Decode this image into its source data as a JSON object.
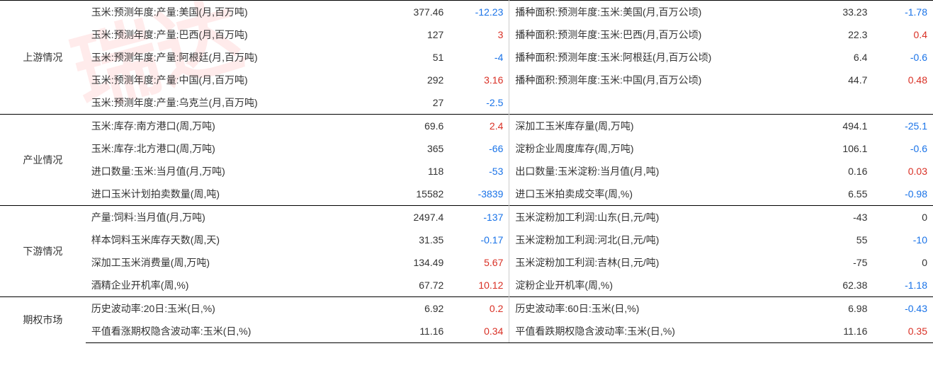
{
  "watermark_text": "瑞达",
  "colors": {
    "positive": "#d93025",
    "negative": "#1a73e8",
    "neutral": "#333333",
    "border": "#000000",
    "divider": "#cccccc",
    "background": "#ffffff"
  },
  "typography": {
    "font_family": "Microsoft YaHei, SimSun, Arial, sans-serif",
    "font_size": 14
  },
  "columns": {
    "category_width": 100,
    "label_width": 330,
    "value_width": 95,
    "change_width": 70
  },
  "sections": [
    {
      "category": "上游情况",
      "rows": [
        {
          "label1": "玉米:预测年度:产量:美国(月,百万吨)",
          "value1": "377.46",
          "change1": "-12.23",
          "sign1": "neg",
          "label2": "播种面积:预测年度:玉米:美国(月,百万公顷)",
          "value2": "33.23",
          "change2": "-1.78",
          "sign2": "neg"
        },
        {
          "label1": "玉米:预测年度:产量:巴西(月,百万吨)",
          "value1": "127",
          "change1": "3",
          "sign1": "pos",
          "label2": "播种面积:预测年度:玉米:巴西(月,百万公顷)",
          "value2": "22.3",
          "change2": "0.4",
          "sign2": "pos"
        },
        {
          "label1": "玉米:预测年度:产量:阿根廷(月,百万吨)",
          "value1": "51",
          "change1": "-4",
          "sign1": "neg",
          "label2": "播种面积:预测年度:玉米:阿根廷(月,百万公顷)",
          "value2": "6.4",
          "change2": "-0.6",
          "sign2": "neg"
        },
        {
          "label1": "玉米:预测年度:产量:中国(月,百万吨)",
          "value1": "292",
          "change1": "3.16",
          "sign1": "pos",
          "label2": "播种面积:预测年度:玉米:中国(月,百万公顷)",
          "value2": "44.7",
          "change2": "0.48",
          "sign2": "pos"
        },
        {
          "label1": "玉米:预测年度:产量:乌克兰(月,百万吨)",
          "value1": "27",
          "change1": "-2.5",
          "sign1": "neg",
          "label2": "",
          "value2": "",
          "change2": "",
          "sign2": "neutral"
        }
      ]
    },
    {
      "category": "产业情况",
      "rows": [
        {
          "label1": "玉米:库存:南方港口(周,万吨)",
          "value1": "69.6",
          "change1": "2.4",
          "sign1": "pos",
          "label2": "深加工玉米库存量(周,万吨)",
          "value2": "494.1",
          "change2": "-25.1",
          "sign2": "neg"
        },
        {
          "label1": "玉米:库存:北方港口(周,万吨)",
          "value1": "365",
          "change1": "-66",
          "sign1": "neg",
          "label2": "淀粉企业周度库存(周,万吨)",
          "value2": "106.1",
          "change2": "-0.6",
          "sign2": "neg"
        },
        {
          "label1": "进口数量:玉米:当月值(月,万吨)",
          "value1": "118",
          "change1": "-53",
          "sign1": "neg",
          "label2": "出口数量:玉米淀粉:当月值(月,吨)",
          "value2": "0.16",
          "change2": "0.03",
          "sign2": "pos"
        },
        {
          "label1": "进口玉米计划拍卖数量(周,吨)",
          "value1": "15582",
          "change1": "-3839",
          "sign1": "neg",
          "label2": "进口玉米拍卖成交率(周,%)",
          "value2": "6.55",
          "change2": "-0.98",
          "sign2": "neg"
        }
      ]
    },
    {
      "category": "下游情况",
      "rows": [
        {
          "label1": "产量:饲料:当月值(月,万吨)",
          "value1": "2497.4",
          "change1": "-137",
          "sign1": "neg",
          "label2": "玉米淀粉加工利润:山东(日,元/吨)",
          "value2": "-43",
          "change2": "0",
          "sign2": "neutral"
        },
        {
          "label1": "样本饲料玉米库存天数(周,天)",
          "value1": "31.35",
          "change1": "-0.17",
          "sign1": "neg",
          "label2": "玉米淀粉加工利润:河北(日,元/吨)",
          "value2": "55",
          "change2": "-10",
          "sign2": "neg"
        },
        {
          "label1": "深加工玉米消费量(周,万吨)",
          "value1": "134.49",
          "change1": "5.67",
          "sign1": "pos",
          "label2": "玉米淀粉加工利润:吉林(日,元/吨)",
          "value2": "-75",
          "change2": "0",
          "sign2": "neutral"
        },
        {
          "label1": "酒精企业开机率(周,%)",
          "value1": "67.72",
          "change1": "10.12",
          "sign1": "pos",
          "label2": "淀粉企业开机率(周,%)",
          "value2": "62.38",
          "change2": "-1.18",
          "sign2": "neg"
        }
      ]
    },
    {
      "category": "期权市场",
      "rows": [
        {
          "label1": "历史波动率:20日:玉米(日,%)",
          "value1": "6.92",
          "change1": "0.2",
          "sign1": "pos",
          "label2": "历史波动率:60日:玉米(日,%)",
          "value2": "6.98",
          "change2": "-0.43",
          "sign2": "neg"
        },
        {
          "label1": "平值看涨期权隐含波动率:玉米(日,%)",
          "value1": "11.16",
          "change1": "0.34",
          "sign1": "pos",
          "label2": "平值看跌期权隐含波动率:玉米(日,%)",
          "value2": "11.16",
          "change2": "0.35",
          "sign2": "pos"
        }
      ]
    }
  ]
}
